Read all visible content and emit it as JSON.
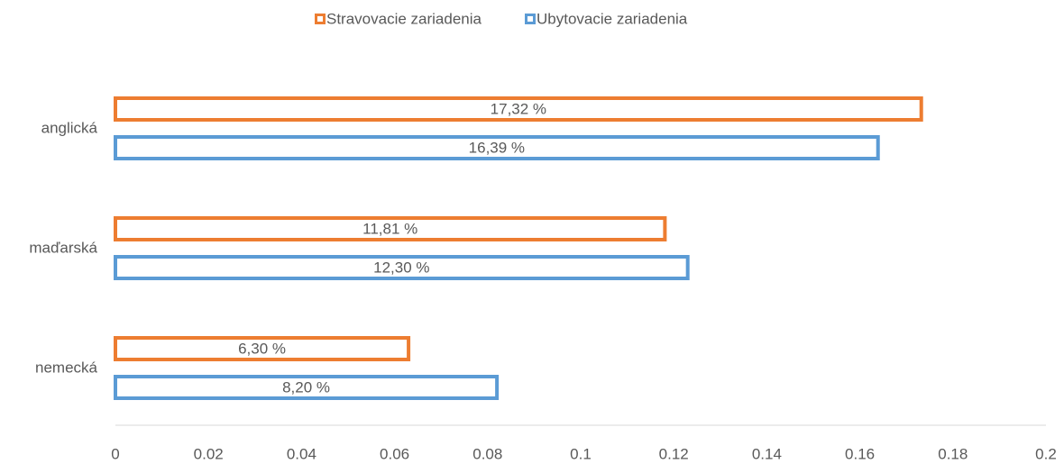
{
  "chart_data": {
    "type": "hbar",
    "categories": [
      "anglická",
      "maďarská",
      "nemecká"
    ],
    "series": [
      {
        "name": "Stravovacie zariadenia",
        "color": "#ed7d31",
        "values": [
          0.1732,
          0.1181,
          0.063
        ],
        "value_labels": [
          "17,32 %",
          "11,81 %",
          "6,30 %"
        ]
      },
      {
        "name": "Ubytovacie zariadenia",
        "color": "#5b9bd5",
        "values": [
          0.1639,
          0.123,
          0.082
        ],
        "value_labels": [
          "16,39 %",
          "12,30 %",
          "8,20 %"
        ]
      }
    ],
    "xlim": [
      0,
      0.2
    ],
    "xticks": [
      0,
      0.02,
      0.04,
      0.06,
      0.08,
      0.1,
      0.12,
      0.14,
      0.16,
      0.18,
      0.2
    ],
    "legend": "top",
    "grid": false
  }
}
